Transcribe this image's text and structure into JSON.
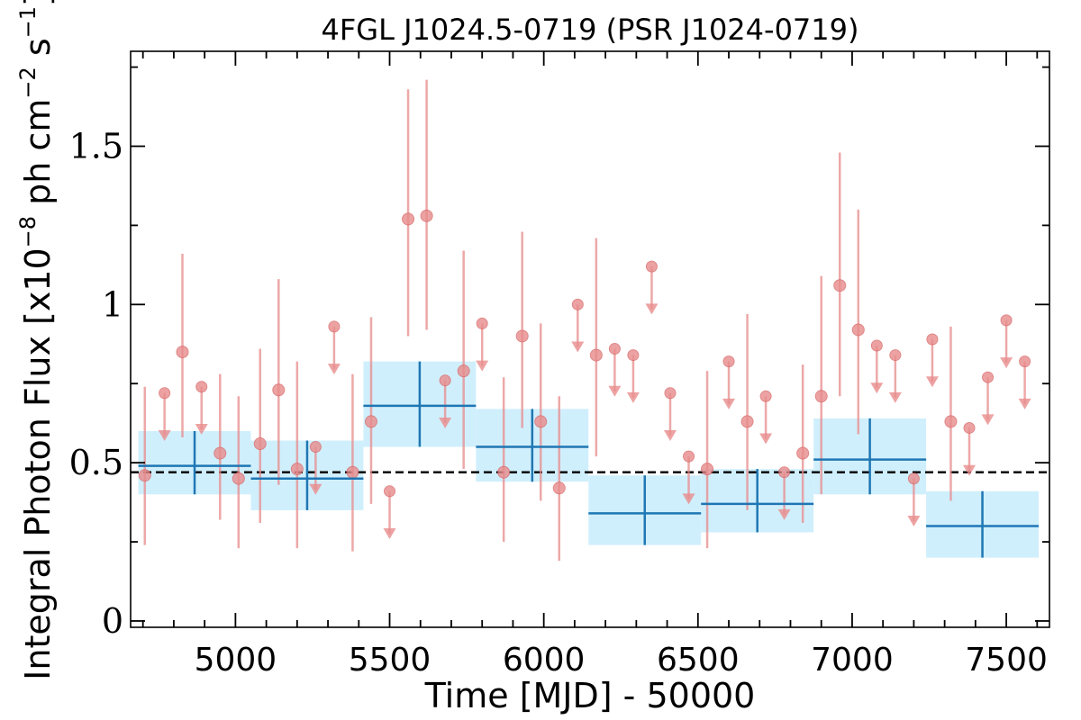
{
  "chart_data": {
    "type": "scatter",
    "title": "4FGL J1024.5-0719 (PSR J1024-0719)",
    "xlabel": "Time [MJD] - 50000",
    "ylabel": "Integral Photon Flux [x10",
    "ylabel_exp": "−8",
    "ylabel_mid": " ph cm",
    "ylabel_exp2": "−2",
    "ylabel_mid2": " s",
    "ylabel_exp3": "−1",
    "ylabel_end": "]",
    "xlim": [
      4660,
      7640
    ],
    "ylim": [
      -0.02,
      1.8
    ],
    "xticks": [
      5000,
      5500,
      6000,
      6500,
      7000,
      7500
    ],
    "xtick_labels": [
      "5000",
      "5500",
      "6000",
      "6500",
      "7000",
      "7500"
    ],
    "yticks": [
      0,
      0.5,
      1,
      1.5
    ],
    "ytick_labels": [
      "0",
      "0.5",
      "1",
      "1.5"
    ],
    "grid": false,
    "mean_flux": 0.47,
    "colors": {
      "points": "#e88c8c",
      "points_edge": "#d96a6a",
      "bins": "#1f77b4",
      "bin_fill": "#cdeefc",
      "mean_line": "#000000"
    },
    "series": [
      {
        "kind": "monthly_detections",
        "points": [
          {
            "x": 4706,
            "y": 0.46,
            "ylo": 0.24,
            "yhi": 0.74
          },
          {
            "x": 4828,
            "y": 0.85,
            "ylo": 0.58,
            "yhi": 1.16
          },
          {
            "x": 4950,
            "y": 0.53,
            "ylo": 0.32,
            "yhi": 0.78
          },
          {
            "x": 5010,
            "y": 0.45,
            "ylo": 0.23,
            "yhi": 0.71
          },
          {
            "x": 5080,
            "y": 0.56,
            "ylo": 0.31,
            "yhi": 0.86
          },
          {
            "x": 5140,
            "y": 0.73,
            "ylo": 0.43,
            "yhi": 1.08
          },
          {
            "x": 5200,
            "y": 0.48,
            "ylo": 0.23,
            "yhi": 0.82
          },
          {
            "x": 5380,
            "y": 0.47,
            "ylo": 0.22,
            "yhi": 0.78
          },
          {
            "x": 5440,
            "y": 0.63,
            "ylo": 0.37,
            "yhi": 0.96
          },
          {
            "x": 5560,
            "y": 1.27,
            "ylo": 0.9,
            "yhi": 1.68
          },
          {
            "x": 5620,
            "y": 1.28,
            "ylo": 0.92,
            "yhi": 1.71
          },
          {
            "x": 5740,
            "y": 0.79,
            "ylo": 0.48,
            "yhi": 1.17
          },
          {
            "x": 5870,
            "y": 0.47,
            "ylo": 0.25,
            "yhi": 0.77
          },
          {
            "x": 5930,
            "y": 0.9,
            "ylo": 0.61,
            "yhi": 1.23
          },
          {
            "x": 5990,
            "y": 0.63,
            "ylo": 0.38,
            "yhi": 0.94
          },
          {
            "x": 6050,
            "y": 0.42,
            "ylo": 0.19,
            "yhi": 0.71
          },
          {
            "x": 6170,
            "y": 0.84,
            "ylo": 0.52,
            "yhi": 1.21
          },
          {
            "x": 6530,
            "y": 0.48,
            "ylo": 0.23,
            "yhi": 0.79
          },
          {
            "x": 6660,
            "y": 0.63,
            "ylo": 0.35,
            "yhi": 0.97
          },
          {
            "x": 6840,
            "y": 0.53,
            "ylo": 0.31,
            "yhi": 0.81
          },
          {
            "x": 6900,
            "y": 0.71,
            "ylo": 0.4,
            "yhi": 1.09
          },
          {
            "x": 6960,
            "y": 1.06,
            "ylo": 0.71,
            "yhi": 1.48
          },
          {
            "x": 7020,
            "y": 0.92,
            "ylo": 0.59,
            "yhi": 1.3
          },
          {
            "x": 7320,
            "y": 0.63,
            "ylo": 0.38,
            "yhi": 0.93
          }
        ]
      },
      {
        "kind": "monthly_upper_limits",
        "points": [
          {
            "x": 4770,
            "y": 0.72,
            "y_arrow": 0.58
          },
          {
            "x": 4890,
            "y": 0.74,
            "y_arrow": 0.6
          },
          {
            "x": 5260,
            "y": 0.55,
            "y_arrow": 0.41
          },
          {
            "x": 5320,
            "y": 0.93,
            "y_arrow": 0.79
          },
          {
            "x": 5500,
            "y": 0.41,
            "y_arrow": 0.27
          },
          {
            "x": 5680,
            "y": 0.76,
            "y_arrow": 0.62
          },
          {
            "x": 5800,
            "y": 0.94,
            "y_arrow": 0.8
          },
          {
            "x": 6110,
            "y": 1.0,
            "y_arrow": 0.86
          },
          {
            "x": 6230,
            "y": 0.86,
            "y_arrow": 0.72
          },
          {
            "x": 6290,
            "y": 0.84,
            "y_arrow": 0.7
          },
          {
            "x": 6350,
            "y": 1.12,
            "y_arrow": 0.98
          },
          {
            "x": 6410,
            "y": 0.72,
            "y_arrow": 0.58
          },
          {
            "x": 6470,
            "y": 0.52,
            "y_arrow": 0.38
          },
          {
            "x": 6600,
            "y": 0.82,
            "y_arrow": 0.68
          },
          {
            "x": 6720,
            "y": 0.71,
            "y_arrow": 0.57
          },
          {
            "x": 6780,
            "y": 0.47,
            "y_arrow": 0.33
          },
          {
            "x": 7080,
            "y": 0.87,
            "y_arrow": 0.73
          },
          {
            "x": 7140,
            "y": 0.84,
            "y_arrow": 0.7
          },
          {
            "x": 7200,
            "y": 0.45,
            "y_arrow": 0.31
          },
          {
            "x": 7260,
            "y": 0.89,
            "y_arrow": 0.75
          },
          {
            "x": 7380,
            "y": 0.61,
            "y_arrow": 0.47
          },
          {
            "x": 7440,
            "y": 0.77,
            "y_arrow": 0.63
          },
          {
            "x": 7500,
            "y": 0.95,
            "y_arrow": 0.81
          },
          {
            "x": 7560,
            "y": 0.82,
            "y_arrow": 0.68
          }
        ]
      },
      {
        "kind": "yearly_bins",
        "points": [
          {
            "x0": 4685,
            "x1": 5050,
            "y": 0.49,
            "ylo": 0.4,
            "yhi": 0.6
          },
          {
            "x0": 5050,
            "x1": 5415,
            "y": 0.45,
            "ylo": 0.35,
            "yhi": 0.57
          },
          {
            "x0": 5415,
            "x1": 5780,
            "y": 0.68,
            "ylo": 0.55,
            "yhi": 0.82
          },
          {
            "x0": 5780,
            "x1": 6145,
            "y": 0.55,
            "ylo": 0.44,
            "yhi": 0.67
          },
          {
            "x0": 6145,
            "x1": 6510,
            "y": 0.34,
            "ylo": 0.24,
            "yhi": 0.46
          },
          {
            "x0": 6510,
            "x1": 6875,
            "y": 0.37,
            "ylo": 0.28,
            "yhi": 0.48
          },
          {
            "x0": 6875,
            "x1": 7240,
            "y": 0.51,
            "ylo": 0.4,
            "yhi": 0.64
          },
          {
            "x0": 7240,
            "x1": 7605,
            "y": 0.3,
            "ylo": 0.2,
            "yhi": 0.41
          }
        ]
      }
    ]
  }
}
